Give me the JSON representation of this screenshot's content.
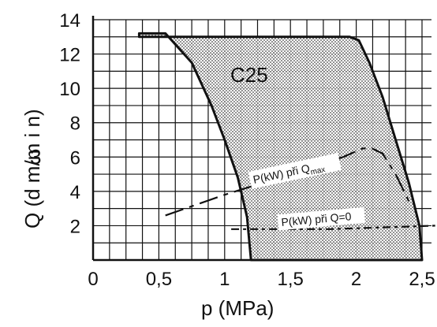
{
  "chart_data": {
    "type": "area",
    "title": "C25",
    "xlabel": "p (MPa)",
    "ylabel": "Q (dm³/min)",
    "ylabel_main": "Q (d m/m i n)",
    "ylabel_sup": "3",
    "xlim": [
      0,
      2.5
    ],
    "ylim": [
      0,
      14
    ],
    "x_ticks": [
      0,
      0.5,
      1,
      1.5,
      2,
      2.5
    ],
    "x_tick_labels": [
      "0",
      "0,5",
      "1",
      "1,5",
      "2",
      "2,5"
    ],
    "y_ticks": [
      2,
      4,
      6,
      8,
      10,
      12,
      14
    ],
    "y_tick_labels": [
      "2",
      "4",
      "6",
      "8",
      "10",
      "12",
      "14"
    ],
    "grid": true,
    "series": [
      {
        "role": "operating-region-boundary",
        "x": [
          0.35,
          0.55,
          0.75,
          0.9,
          1.0,
          1.1,
          1.17,
          1.2,
          2.5,
          2.48,
          2.4,
          2.3,
          2.2,
          2.1,
          2.02,
          1.95,
          0.35
        ],
        "y": [
          13.2,
          13.2,
          11.5,
          9.0,
          7.0,
          4.8,
          2.5,
          0.0,
          0.0,
          2.0,
          4.5,
          7.0,
          9.5,
          11.5,
          12.8,
          13.0,
          13.0
        ]
      },
      {
        "name": "P(kW) při Qmax",
        "x": [
          0.55,
          1.0,
          1.5,
          1.9,
          2.05,
          2.12,
          2.2,
          2.3,
          2.42
        ],
        "y": [
          2.6,
          3.8,
          5.0,
          6.0,
          6.5,
          6.5,
          6.2,
          5.0,
          3.1
        ]
      },
      {
        "name": "P(kW) při Q=0",
        "x": [
          1.05,
          1.4,
          1.8,
          2.2,
          2.6
        ],
        "y": [
          1.8,
          1.8,
          1.8,
          1.9,
          2.0
        ]
      }
    ],
    "annotations": [
      {
        "text_main": "P(kW) při Q",
        "text_sub": "max",
        "x": 1.35,
        "y": 5.7
      },
      {
        "text_main": "P(kW) při Q=0",
        "x": 1.75,
        "y": 3.1
      }
    ],
    "colors": {
      "line": "#111111",
      "grid": "#111111",
      "fill": "#bfbfbf"
    }
  }
}
